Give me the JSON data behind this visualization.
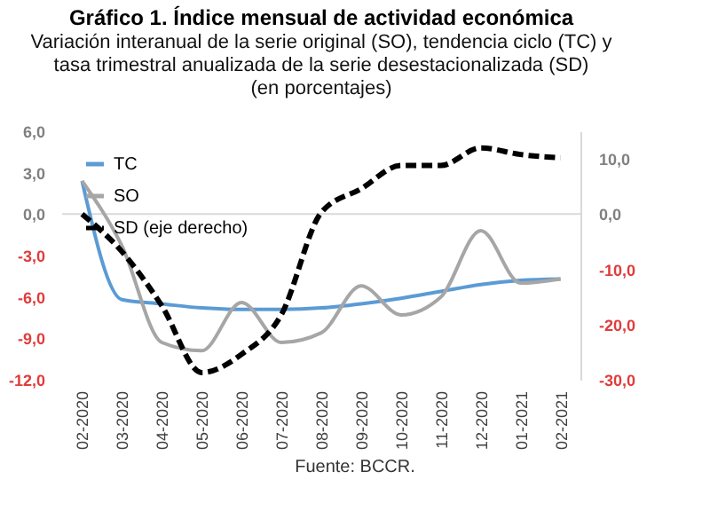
{
  "chart_data": {
    "type": "line",
    "title": "Gráfico 1. Índice mensual de actividad económica",
    "subtitle": "Variación interanual de la serie original (SO), tendencia ciclo (TC) y\ntasa trimestral anualizada de la serie desestacionalizada (SD)\n(en porcentajes)",
    "categories": [
      "02-2020",
      "03-2020",
      "04-2020",
      "05-2020",
      "06-2020",
      "07-2020",
      "08-2020",
      "09-2020",
      "10-2020",
      "11-2020",
      "12-2020",
      "01-2021",
      "02-2021"
    ],
    "series": [
      {
        "name": "TC",
        "color": "#5b9bd5",
        "line_style": "solid",
        "values": [
          2.4,
          -6.2,
          -6.5,
          -6.8,
          -6.9,
          -6.9,
          -6.8,
          -6.5,
          -6.1,
          -5.6,
          -5.1,
          -4.8,
          -4.7
        ]
      },
      {
        "name": "SO",
        "color": "#a6a6a6",
        "line_style": "solid",
        "values": [
          2.4,
          -2.3,
          -9.3,
          -9.9,
          -6.4,
          -9.3,
          -8.6,
          -5.2,
          -7.3,
          -6.0,
          -1.2,
          -5.0,
          -4.7
        ]
      },
      {
        "name": "SD (eje derecho)",
        "color": "#000000",
        "line_style": "dashed",
        "axis": "y2",
        "values": [
          0,
          -6.8,
          -16.6,
          -28.7,
          -25.4,
          -18.2,
          0.3,
          4.6,
          8.8,
          8.8,
          12,
          10.8,
          10.2
        ]
      }
    ],
    "ylim": [
      -12,
      6
    ],
    "yticks": [
      {
        "value": -12,
        "label": "-12,0"
      },
      {
        "value": -9,
        "label": "-9,0"
      },
      {
        "value": -6,
        "label": "-6,0"
      },
      {
        "value": -3,
        "label": "-3,0"
      },
      {
        "value": 0,
        "label": "0,0"
      },
      {
        "value": 3,
        "label": "3,0"
      },
      {
        "value": 6,
        "label": "6,0"
      }
    ],
    "y2lim": [
      -30,
      15
    ],
    "y2ticks": [
      {
        "value": -30,
        "label": "-30,0"
      },
      {
        "value": -20,
        "label": "-20,0"
      },
      {
        "value": -10,
        "label": "-10,0"
      },
      {
        "value": 0,
        "label": "0,0"
      },
      {
        "value": 10,
        "label": "10,0"
      }
    ],
    "ref_lines": [
      {
        "axis": "y",
        "value": 0,
        "color": "#d9d9d9"
      }
    ],
    "legend": "top left",
    "annotations": [
      "Fuente: BCCR."
    ]
  }
}
